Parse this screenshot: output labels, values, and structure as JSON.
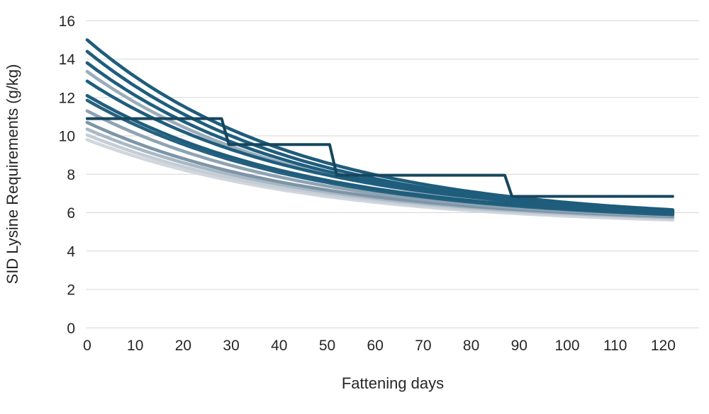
{
  "chart_data": {
    "type": "line",
    "title": "",
    "xlabel": "Fattening days",
    "ylabel": "SID Lysine Requirements (g/kg)",
    "xlim": [
      0,
      127
    ],
    "ylim": [
      0,
      16
    ],
    "x_ticks": [
      0,
      10,
      20,
      30,
      40,
      50,
      60,
      70,
      80,
      90,
      100,
      110,
      120
    ],
    "y_ticks": [
      0,
      2,
      4,
      6,
      8,
      10,
      12,
      14,
      16
    ],
    "x_end": 122,
    "grid": "horizontal",
    "legend": "none",
    "colors": {
      "gridline": "#d7d7d7",
      "axis_text": "#262626",
      "teal_dark": "#1e5c7c",
      "teal_step": "#16465e",
      "gray_blue": "#8ea3b3",
      "gray_light": "#c5ced7"
    },
    "series": [
      {
        "name": "curve-light-2",
        "type": "smooth",
        "color": "#d1d7dd",
        "start": 9.8,
        "end": 5.62,
        "tau": 47
      },
      {
        "name": "curve-light-1",
        "type": "smooth",
        "color": "#c5ced7",
        "start": 10.05,
        "end": 5.7,
        "tau": 46
      },
      {
        "name": "curve-gray-4",
        "type": "smooth",
        "color": "#a9b8c5",
        "start": 10.35,
        "end": 5.75,
        "tau": 46
      },
      {
        "name": "curve-gray-3",
        "type": "smooth",
        "color": "#7d95a7",
        "start": 10.7,
        "end": 5.8,
        "tau": 45
      },
      {
        "name": "curve-gray-2",
        "type": "smooth",
        "color": "#8ea3b3",
        "start": 11.3,
        "end": 5.85,
        "tau": 45
      },
      {
        "name": "curve-gray-1",
        "type": "smooth",
        "color": "#9badbc",
        "start": 13.35,
        "end": 5.95,
        "tau": 44
      },
      {
        "name": "curve-teal-6",
        "type": "smooth",
        "color": "#27617f",
        "start": 11.85,
        "end": 5.9,
        "tau": 45
      },
      {
        "name": "curve-teal-5",
        "type": "smooth",
        "color": "#1f5d7d",
        "start": 12.1,
        "end": 5.95,
        "tau": 45
      },
      {
        "name": "curve-teal-4",
        "type": "smooth",
        "color": "#1f5d7d",
        "start": 12.85,
        "end": 6.1,
        "tau": 44
      },
      {
        "name": "curve-teal-3",
        "type": "smooth",
        "color": "#1f5d7d",
        "start": 13.8,
        "end": 6.0,
        "tau": 44
      },
      {
        "name": "curve-teal-2",
        "type": "smooth",
        "color": "#1f5d7d",
        "start": 14.4,
        "end": 6.05,
        "tau": 44
      },
      {
        "name": "curve-teal-1",
        "type": "smooth",
        "color": "#1e5c7c",
        "start": 15.0,
        "end": 6.15,
        "tau": 44
      },
      {
        "name": "step-feeding-program",
        "type": "step",
        "color": "#16465e",
        "points": [
          [
            0,
            10.9
          ],
          [
            28,
            10.9
          ],
          [
            29.5,
            9.55
          ],
          [
            50.5,
            9.55
          ],
          [
            52,
            7.95
          ],
          [
            87,
            7.95
          ],
          [
            88.5,
            6.85
          ],
          [
            122,
            6.85
          ]
        ]
      }
    ]
  }
}
